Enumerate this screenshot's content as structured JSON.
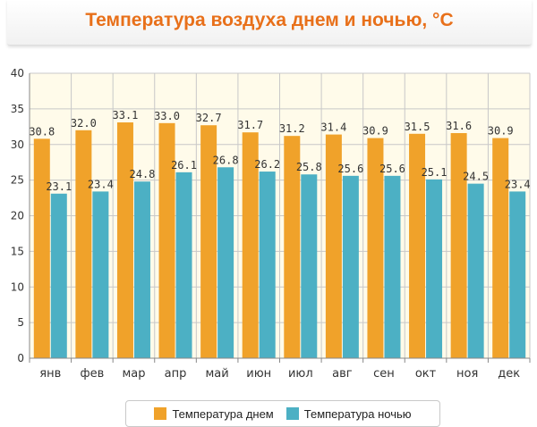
{
  "title": "Температура воздуха днем и ночью, °C",
  "colors": {
    "day": "#f0a22a",
    "night": "#4cb0c4",
    "plot_bg": "#fffbea"
  },
  "chart_data": {
    "type": "bar",
    "title": "Температура воздуха днем и ночью, °C",
    "categories": [
      "янв",
      "фев",
      "мар",
      "апр",
      "май",
      "июн",
      "июл",
      "авг",
      "сен",
      "окт",
      "ноя",
      "дек"
    ],
    "series": [
      {
        "name": "Температура днем",
        "values": [
          30.8,
          32.0,
          33.1,
          33.0,
          32.7,
          31.7,
          31.2,
          31.4,
          30.9,
          31.5,
          31.6,
          30.9
        ]
      },
      {
        "name": "Температура ночью",
        "values": [
          23.1,
          23.4,
          24.8,
          26.1,
          26.8,
          26.2,
          25.8,
          25.6,
          25.6,
          25.1,
          24.5,
          23.4
        ]
      }
    ],
    "ylim": [
      0,
      40
    ],
    "yticks": [
      0,
      5,
      10,
      15,
      20,
      25,
      30,
      35,
      40
    ],
    "grid": true,
    "legend_position": "bottom"
  },
  "legend": {
    "day_label": "Температура днем",
    "night_label": "Температура ночью"
  }
}
